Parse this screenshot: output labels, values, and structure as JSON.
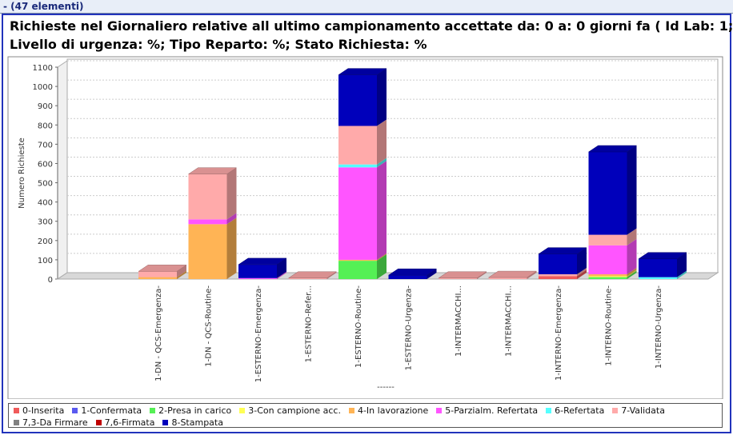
{
  "header": {
    "count": "- (47 elementi)"
  },
  "chart_data": {
    "type": "bar3d-stacked",
    "title": "Richieste nel Giornaliero relative all ultimo campionamento accettate da:  0  a: 0  giorni fa   ( Id Lab: 1;",
    "subtitle": "Livello di urgenza: %; Tipo Reparto: %; Stato Richiesta: %",
    "ylabel": "Numero Richieste",
    "xlabel": "------",
    "ylim": [
      0,
      1100
    ],
    "yticks": [
      0,
      100,
      200,
      300,
      400,
      500,
      600,
      700,
      800,
      900,
      1000,
      1100
    ],
    "grid": true,
    "categories": [
      "1-DN - QCS-Emergenza-",
      "1-DN - QCS-Routine-",
      "1-ESTERNO-Emergenza-",
      "1-ESTERNO-Refer...",
      "1-ESTERNO-Routine-",
      "1-ESTERNO-Urgenza-",
      "1-INTERMACCHI...",
      "1-INTERMACCHI...",
      "1-INTERNO-Emergenza-",
      "1-INTERNO-Routine-",
      "1-INTERNO-Urgenza-"
    ],
    "series": [
      {
        "name": "0-Inserita",
        "color": "#f05a5a",
        "values": [
          0,
          0,
          0,
          0,
          0,
          0,
          0,
          0,
          15,
          0,
          0
        ]
      },
      {
        "name": "1-Confermata",
        "color": "#5a5af0",
        "values": [
          0,
          0,
          0,
          0,
          0,
          0,
          0,
          0,
          0,
          0,
          0
        ]
      },
      {
        "name": "2-Presa in carico",
        "color": "#55f055",
        "values": [
          0,
          0,
          0,
          0,
          95,
          0,
          0,
          0,
          0,
          10,
          0
        ]
      },
      {
        "name": "3-Con campione acc.",
        "color": "#ffff55",
        "values": [
          0,
          0,
          0,
          0,
          0,
          0,
          0,
          0,
          0,
          5,
          0
        ]
      },
      {
        "name": "4-In lavorazione",
        "color": "#ffb455",
        "values": [
          10,
          285,
          0,
          0,
          5,
          0,
          0,
          0,
          0,
          10,
          0
        ]
      },
      {
        "name": "5-Parzialm. Refertata",
        "color": "#ff55ff",
        "values": [
          0,
          25,
          5,
          0,
          480,
          0,
          0,
          0,
          0,
          150,
          0
        ]
      },
      {
        "name": "6-Refertata",
        "color": "#55ffff",
        "values": [
          0,
          0,
          0,
          0,
          15,
          0,
          0,
          0,
          0,
          0,
          10
        ]
      },
      {
        "name": "7-Validata",
        "color": "#ffaaaa",
        "values": [
          30,
          235,
          0,
          5,
          200,
          0,
          5,
          8,
          10,
          55,
          0
        ]
      },
      {
        "name": "7,3-Da Firmare",
        "color": "#808080",
        "values": [
          0,
          0,
          0,
          0,
          0,
          0,
          0,
          0,
          0,
          0,
          0
        ]
      },
      {
        "name": "7,6-Firmata",
        "color": "#c00000",
        "values": [
          0,
          0,
          0,
          0,
          0,
          0,
          0,
          0,
          0,
          0,
          0
        ]
      },
      {
        "name": "8-Stampata",
        "color": "#0000bb",
        "values": [
          0,
          0,
          70,
          0,
          265,
          20,
          0,
          0,
          105,
          430,
          95
        ]
      }
    ]
  }
}
